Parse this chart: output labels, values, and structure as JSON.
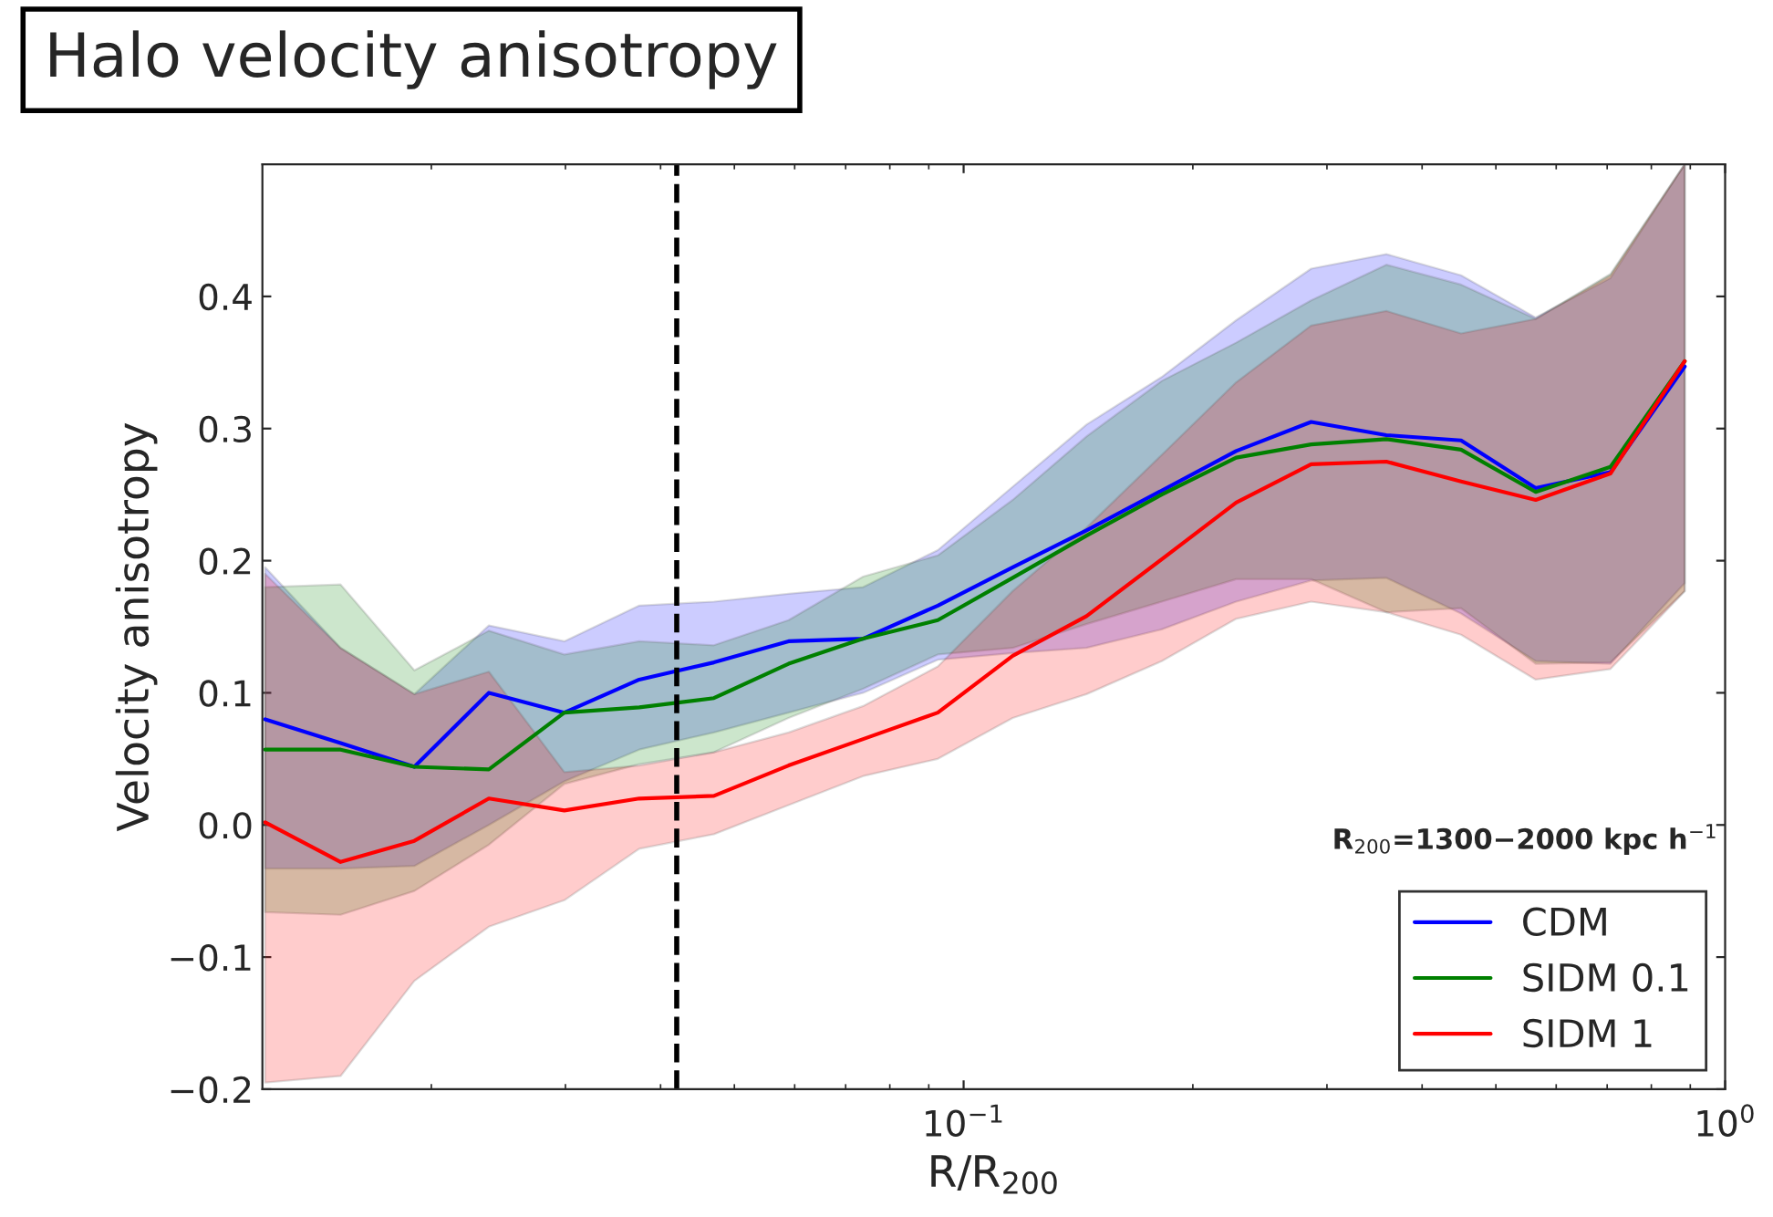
{
  "chart_data": {
    "type": "line",
    "title": "Halo velocity anisotropy",
    "xlabel": "R/R$_{200}$",
    "ylabel": "Velocity anisotropy",
    "x": [
      0.0121,
      0.0152,
      0.019,
      0.0238,
      0.0299,
      0.0375,
      0.047,
      0.0589,
      0.0738,
      0.0925,
      0.116,
      0.145,
      0.182,
      0.228,
      0.286,
      0.359,
      0.45,
      0.564,
      0.707,
      0.885
    ],
    "series": [
      {
        "name": "CDM",
        "color": "#0000ff",
        "values": [
          0.08,
          0.062,
          0.044,
          0.1,
          0.085,
          0.11,
          0.123,
          0.139,
          0.141,
          0.166,
          0.195,
          0.223,
          0.253,
          0.283,
          0.305,
          0.295,
          0.291,
          0.255,
          0.267,
          0.347
        ],
        "lower": [
          -0.033,
          -0.033,
          -0.031,
          0.0,
          0.033,
          0.057,
          0.07,
          0.085,
          0.1,
          0.125,
          0.13,
          0.134,
          0.148,
          0.169,
          0.185,
          0.187,
          0.16,
          0.124,
          0.122,
          0.183
        ],
        "upper": [
          0.195,
          0.134,
          0.099,
          0.151,
          0.139,
          0.166,
          0.169,
          0.175,
          0.18,
          0.208,
          0.256,
          0.303,
          0.339,
          0.382,
          0.421,
          0.432,
          0.416,
          0.384,
          0.414,
          0.5
        ]
      },
      {
        "name": "SIDM 0.1",
        "color": "#008000",
        "values": [
          0.057,
          0.057,
          0.044,
          0.042,
          0.085,
          0.089,
          0.096,
          0.122,
          0.141,
          0.155,
          0.187,
          0.219,
          0.25,
          0.278,
          0.288,
          0.292,
          0.284,
          0.252,
          0.271,
          0.351
        ],
        "lower": [
          -0.066,
          -0.068,
          -0.05,
          -0.015,
          0.031,
          0.046,
          0.055,
          0.081,
          0.103,
          0.129,
          0.134,
          0.152,
          0.169,
          0.186,
          0.186,
          0.161,
          0.164,
          0.122,
          0.123,
          0.177
        ],
        "upper": [
          0.18,
          0.182,
          0.117,
          0.147,
          0.129,
          0.139,
          0.136,
          0.155,
          0.188,
          0.204,
          0.246,
          0.294,
          0.336,
          0.365,
          0.397,
          0.424,
          0.409,
          0.383,
          0.417,
          0.5
        ]
      },
      {
        "name": "SIDM 1",
        "color": "#ff0000",
        "values": [
          0.002,
          -0.028,
          -0.012,
          0.02,
          0.011,
          0.02,
          0.022,
          0.045,
          0.065,
          0.085,
          0.128,
          0.158,
          0.201,
          0.244,
          0.273,
          0.275,
          0.26,
          0.246,
          0.266,
          0.351
        ],
        "lower": [
          -0.195,
          -0.19,
          -0.118,
          -0.077,
          -0.057,
          -0.018,
          -0.007,
          0.015,
          0.037,
          0.05,
          0.081,
          0.099,
          0.124,
          0.156,
          0.169,
          0.161,
          0.144,
          0.11,
          0.118,
          0.177
        ],
        "upper": [
          0.19,
          0.134,
          0.099,
          0.116,
          0.04,
          0.045,
          0.055,
          0.07,
          0.09,
          0.12,
          0.177,
          0.225,
          0.28,
          0.335,
          0.378,
          0.389,
          0.372,
          0.383,
          0.416,
          0.5
        ]
      }
    ],
    "log": "x",
    "xlim": [
      0.012,
      1
    ],
    "xticks": [
      {
        "value": 0.1,
        "label": "10$^{−1}$"
      },
      {
        "value": 1,
        "label": "10$^{0}$"
      }
    ],
    "ylim": [
      -0.2,
      0.5
    ],
    "yticks": [
      {
        "value": -0.2,
        "label": "−0.2"
      },
      {
        "value": -0.1,
        "label": "−0.1"
      },
      {
        "value": 0.0,
        "label": "0.0"
      },
      0.1,
      0.2,
      0.3,
      0.4
    ],
    "ref_lines": [
      {
        "axis": "x",
        "value": 0.042,
        "color": "#000000",
        "line_style": "dashed"
      }
    ],
    "annotations": [
      "R$_{200}$=1300−2000 kpc h$^{−1}$"
    ],
    "legend": "bottom right",
    "grid": false,
    "marker": "none",
    "line_style": "solid"
  }
}
